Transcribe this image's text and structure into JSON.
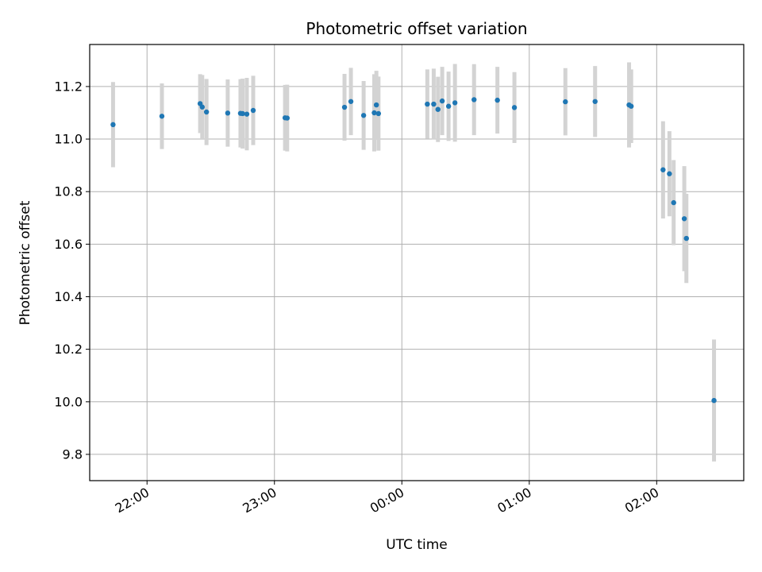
{
  "chart_data": {
    "type": "scatter",
    "title": "Photometric offset variation",
    "xlabel": "UTC time",
    "ylabel": "Photometric offset",
    "grid": true,
    "x_ticks": [
      "22:00",
      "23:00",
      "00:00",
      "01:00",
      "02:00"
    ],
    "y_ticks": [
      "9.8",
      "10.0",
      "10.2",
      "10.4",
      "10.6",
      "10.8",
      "11.0",
      "11.2"
    ],
    "xlim": [
      "21:33",
      "02:41"
    ],
    "ylim": [
      9.7,
      11.36
    ],
    "marker_color": "#1f77b4",
    "errorbar_color": "#d3d3d3",
    "series": [
      {
        "points": [
          {
            "t": "21:44",
            "y": 11.055,
            "err": 0.162
          },
          {
            "t": "22:07",
            "y": 11.087,
            "err": 0.125
          },
          {
            "t": "22:25",
            "y": 11.135,
            "err": 0.112
          },
          {
            "t": "22:26",
            "y": 11.122,
            "err": 0.122
          },
          {
            "t": "22:28",
            "y": 11.103,
            "err": 0.126
          },
          {
            "t": "22:38",
            "y": 11.099,
            "err": 0.128
          },
          {
            "t": "22:44",
            "y": 11.098,
            "err": 0.13
          },
          {
            "t": "22:45",
            "y": 11.097,
            "err": 0.133
          },
          {
            "t": "22:47",
            "y": 11.095,
            "err": 0.138
          },
          {
            "t": "22:50",
            "y": 11.109,
            "err": 0.132
          },
          {
            "t": "23:05",
            "y": 11.081,
            "err": 0.125
          },
          {
            "t": "23:06",
            "y": 11.08,
            "err": 0.127
          },
          {
            "t": "23:33",
            "y": 11.121,
            "err": 0.127
          },
          {
            "t": "23:36",
            "y": 11.143,
            "err": 0.128
          },
          {
            "t": "23:42",
            "y": 11.09,
            "err": 0.131
          },
          {
            "t": "23:47",
            "y": 11.1,
            "err": 0.147
          },
          {
            "t": "23:48",
            "y": 11.13,
            "err": 0.13
          },
          {
            "t": "23:49",
            "y": 11.097,
            "err": 0.141
          },
          {
            "t": "00:12",
            "y": 11.133,
            "err": 0.132
          },
          {
            "t": "00:15",
            "y": 11.133,
            "err": 0.135
          },
          {
            "t": "00:17",
            "y": 11.113,
            "err": 0.124
          },
          {
            "t": "00:19",
            "y": 11.145,
            "err": 0.13
          },
          {
            "t": "00:22",
            "y": 11.125,
            "err": 0.132
          },
          {
            "t": "00:25",
            "y": 11.138,
            "err": 0.148
          },
          {
            "t": "00:34",
            "y": 11.15,
            "err": 0.135
          },
          {
            "t": "00:45",
            "y": 11.148,
            "err": 0.127
          },
          {
            "t": "00:53",
            "y": 11.12,
            "err": 0.135
          },
          {
            "t": "01:17",
            "y": 11.142,
            "err": 0.128
          },
          {
            "t": "01:31",
            "y": 11.143,
            "err": 0.135
          },
          {
            "t": "01:47",
            "y": 11.13,
            "err": 0.162
          },
          {
            "t": "01:48",
            "y": 11.125,
            "err": 0.14
          },
          {
            "t": "02:03",
            "y": 10.883,
            "err": 0.185
          },
          {
            "t": "02:06",
            "y": 10.868,
            "err": 0.162
          },
          {
            "t": "02:08",
            "y": 10.758,
            "err": 0.162
          },
          {
            "t": "02:13",
            "y": 10.697,
            "err": 0.2
          },
          {
            "t": "02:14",
            "y": 10.622,
            "err": 0.17
          },
          {
            "t": "02:27",
            "y": 10.005,
            "err": 0.232
          }
        ]
      }
    ]
  }
}
